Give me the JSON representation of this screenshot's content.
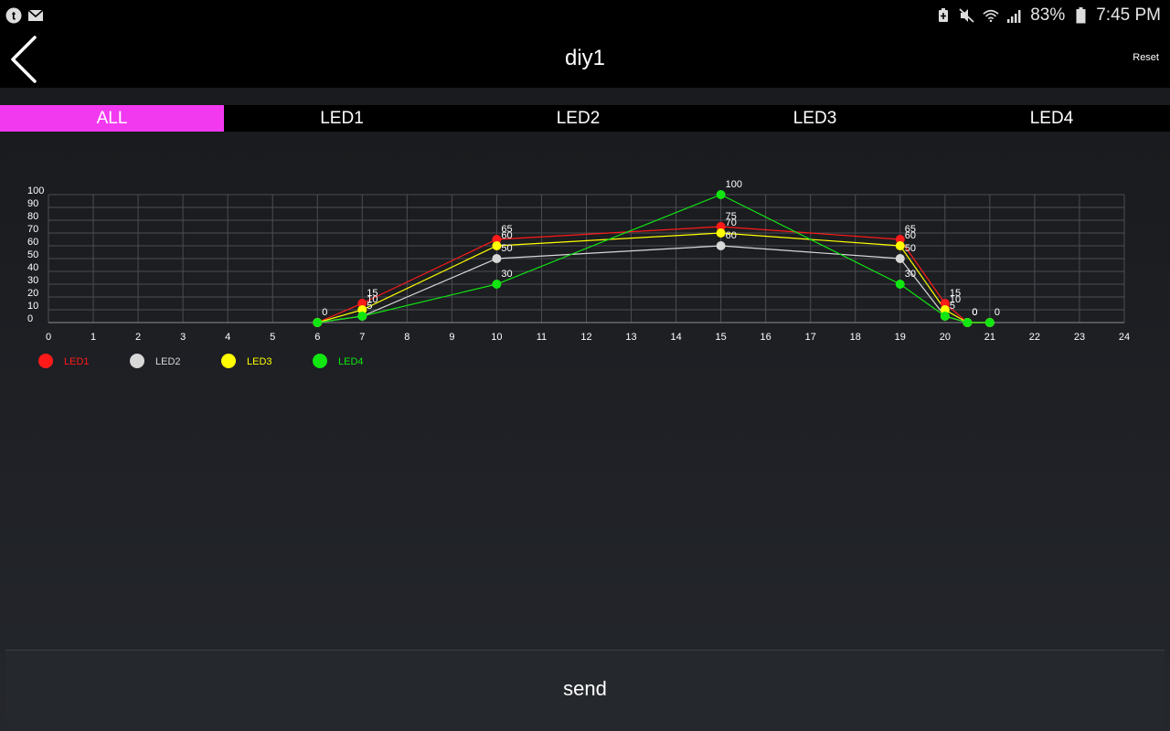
{
  "status_bar": {
    "battery_percent": "83%",
    "time": "7:45 PM",
    "icons": [
      "tumblr-icon",
      "mail-icon",
      "battery-saver-icon",
      "mute-icon",
      "wifi-icon",
      "signal-icon",
      "battery-icon"
    ]
  },
  "header": {
    "title": "diy1",
    "reset_label": "Reset"
  },
  "tabs": [
    {
      "label": "ALL",
      "active": true
    },
    {
      "label": "LED1",
      "active": false
    },
    {
      "label": "LED2",
      "active": false
    },
    {
      "label": "LED3",
      "active": false
    },
    {
      "label": "LED4",
      "active": false
    }
  ],
  "send_label": "send",
  "colors": {
    "accent": "#f239f0",
    "led1": "#ff1a1a",
    "led2": "#d8d8d8",
    "led3": "#ffff00",
    "led4": "#11e611"
  },
  "chart_data": {
    "type": "line",
    "xlim": [
      0,
      24
    ],
    "ylim": [
      0,
      100
    ],
    "x_ticks": [
      0,
      1,
      2,
      3,
      4,
      5,
      6,
      7,
      8,
      9,
      10,
      11,
      12,
      13,
      14,
      15,
      16,
      17,
      18,
      19,
      20,
      21,
      22,
      23,
      24
    ],
    "y_ticks": [
      0,
      10,
      20,
      30,
      40,
      50,
      60,
      70,
      80,
      90,
      100
    ],
    "grid": true,
    "legend_position": "bottom-left",
    "series": [
      {
        "name": "LED1",
        "color": "#ff1a1a",
        "points": [
          [
            6,
            0
          ],
          [
            7,
            15
          ],
          [
            10,
            65
          ],
          [
            15,
            75
          ],
          [
            19,
            65
          ],
          [
            20,
            15
          ],
          [
            20.5,
            0
          ],
          [
            21,
            0
          ]
        ],
        "labels": [
          "0",
          "15",
          "65",
          "75",
          "65",
          "15",
          "",
          ""
        ]
      },
      {
        "name": "LED2",
        "color": "#d8d8d8",
        "points": [
          [
            6,
            0
          ],
          [
            7,
            5
          ],
          [
            10,
            50
          ],
          [
            15,
            60
          ],
          [
            19,
            50
          ],
          [
            20,
            5
          ],
          [
            20.5,
            0
          ],
          [
            21,
            0
          ]
        ],
        "labels": [
          "",
          "5",
          "50",
          "60",
          "50",
          "5",
          "",
          ""
        ]
      },
      {
        "name": "LED3",
        "color": "#ffff00",
        "points": [
          [
            6,
            0
          ],
          [
            7,
            10
          ],
          [
            10,
            60
          ],
          [
            15,
            70
          ],
          [
            19,
            60
          ],
          [
            20,
            10
          ],
          [
            20.5,
            0
          ],
          [
            21,
            0
          ]
        ],
        "labels": [
          "",
          "10",
          "60",
          "70",
          "60",
          "10",
          "0",
          ""
        ]
      },
      {
        "name": "LED4",
        "color": "#11e611",
        "points": [
          [
            6,
            0
          ],
          [
            7,
            5
          ],
          [
            10,
            30
          ],
          [
            15,
            100
          ],
          [
            19,
            30
          ],
          [
            20,
            5
          ],
          [
            20.5,
            0
          ],
          [
            21,
            0
          ]
        ],
        "labels": [
          "",
          "",
          "30",
          "100",
          "30",
          "",
          "0",
          "0"
        ]
      }
    ]
  }
}
